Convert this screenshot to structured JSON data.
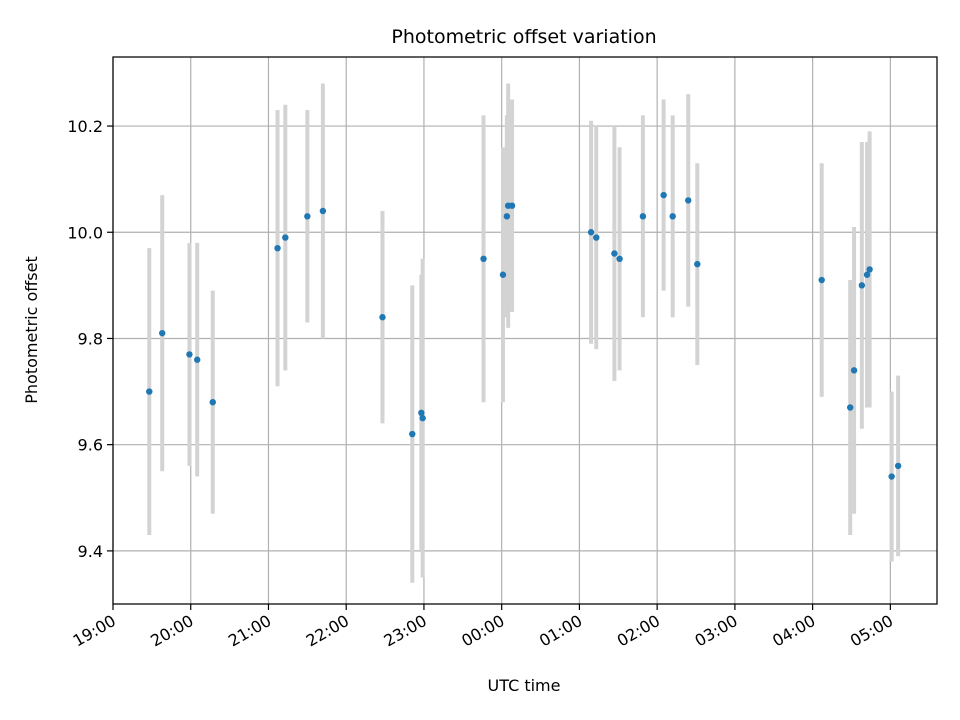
{
  "chart_data": {
    "type": "scatter",
    "title": "Photometric offset variation",
    "xlabel": "UTC time",
    "ylabel": "Photometric offset",
    "x_ticks": [
      "19:00",
      "20:00",
      "21:00",
      "22:00",
      "23:00",
      "00:00",
      "01:00",
      "02:00",
      "03:00",
      "04:00",
      "05:00"
    ],
    "y_ticks": [
      "9.4",
      "9.6",
      "9.8",
      "10.0",
      "10.2"
    ],
    "xlim": [
      "19:00",
      "05:36"
    ],
    "ylim": [
      9.3,
      10.33
    ],
    "grid": true,
    "colors": {
      "points": "#1f77b4",
      "errorbars": "#d3d3d3",
      "grid": "#b0b0b0"
    },
    "series": [
      {
        "points": [
          {
            "x": "19:28",
            "y": 9.7,
            "yerr": 0.27
          },
          {
            "x": "19:38",
            "y": 9.81,
            "yerr": 0.26
          },
          {
            "x": "19:59",
            "y": 9.77,
            "yerr": 0.21
          },
          {
            "x": "20:05",
            "y": 9.76,
            "yerr": 0.22
          },
          {
            "x": "20:17",
            "y": 9.68,
            "yerr": 0.21
          },
          {
            "x": "21:07",
            "y": 9.97,
            "yerr": 0.26
          },
          {
            "x": "21:13",
            "y": 9.99,
            "yerr": 0.25
          },
          {
            "x": "21:30",
            "y": 10.03,
            "yerr": 0.2
          },
          {
            "x": "21:42",
            "y": 10.04,
            "yerr": 0.24
          },
          {
            "x": "22:28",
            "y": 9.84,
            "yerr": 0.2
          },
          {
            "x": "22:51",
            "y": 9.62,
            "yerr": 0.28
          },
          {
            "x": "22:58",
            "y": 9.66,
            "yerr": 0.26
          },
          {
            "x": "22:59",
            "y": 9.65,
            "yerr": 0.3
          },
          {
            "x": "23:46",
            "y": 9.95,
            "yerr": 0.27
          },
          {
            "x": "00:01",
            "y": 9.92,
            "yerr": 0.24
          },
          {
            "x": "00:04",
            "y": 10.03,
            "yerr": 0.19
          },
          {
            "x": "00:05",
            "y": 10.05,
            "yerr": 0.23
          },
          {
            "x": "00:08",
            "y": 10.05,
            "yerr": 0.2
          },
          {
            "x": "01:09",
            "y": 10.0,
            "yerr": 0.21
          },
          {
            "x": "01:13",
            "y": 9.99,
            "yerr": 0.21
          },
          {
            "x": "01:27",
            "y": 9.96,
            "yerr": 0.24
          },
          {
            "x": "01:31",
            "y": 9.95,
            "yerr": 0.21
          },
          {
            "x": "01:49",
            "y": 10.03,
            "yerr": 0.19
          },
          {
            "x": "02:05",
            "y": 10.07,
            "yerr": 0.18
          },
          {
            "x": "02:12",
            "y": 10.03,
            "yerr": 0.19
          },
          {
            "x": "02:24",
            "y": 10.06,
            "yerr": 0.2
          },
          {
            "x": "02:31",
            "y": 9.94,
            "yerr": 0.19
          },
          {
            "x": "04:07",
            "y": 9.91,
            "yerr": 0.22
          },
          {
            "x": "04:29",
            "y": 9.67,
            "yerr": 0.24
          },
          {
            "x": "04:32",
            "y": 9.74,
            "yerr": 0.27
          },
          {
            "x": "04:38",
            "y": 9.9,
            "yerr": 0.27
          },
          {
            "x": "04:42",
            "y": 9.92,
            "yerr": 0.25
          },
          {
            "x": "04:44",
            "y": 9.93,
            "yerr": 0.26
          },
          {
            "x": "05:01",
            "y": 9.54,
            "yerr": 0.16
          },
          {
            "x": "05:06",
            "y": 9.56,
            "yerr": 0.17
          }
        ]
      }
    ]
  }
}
